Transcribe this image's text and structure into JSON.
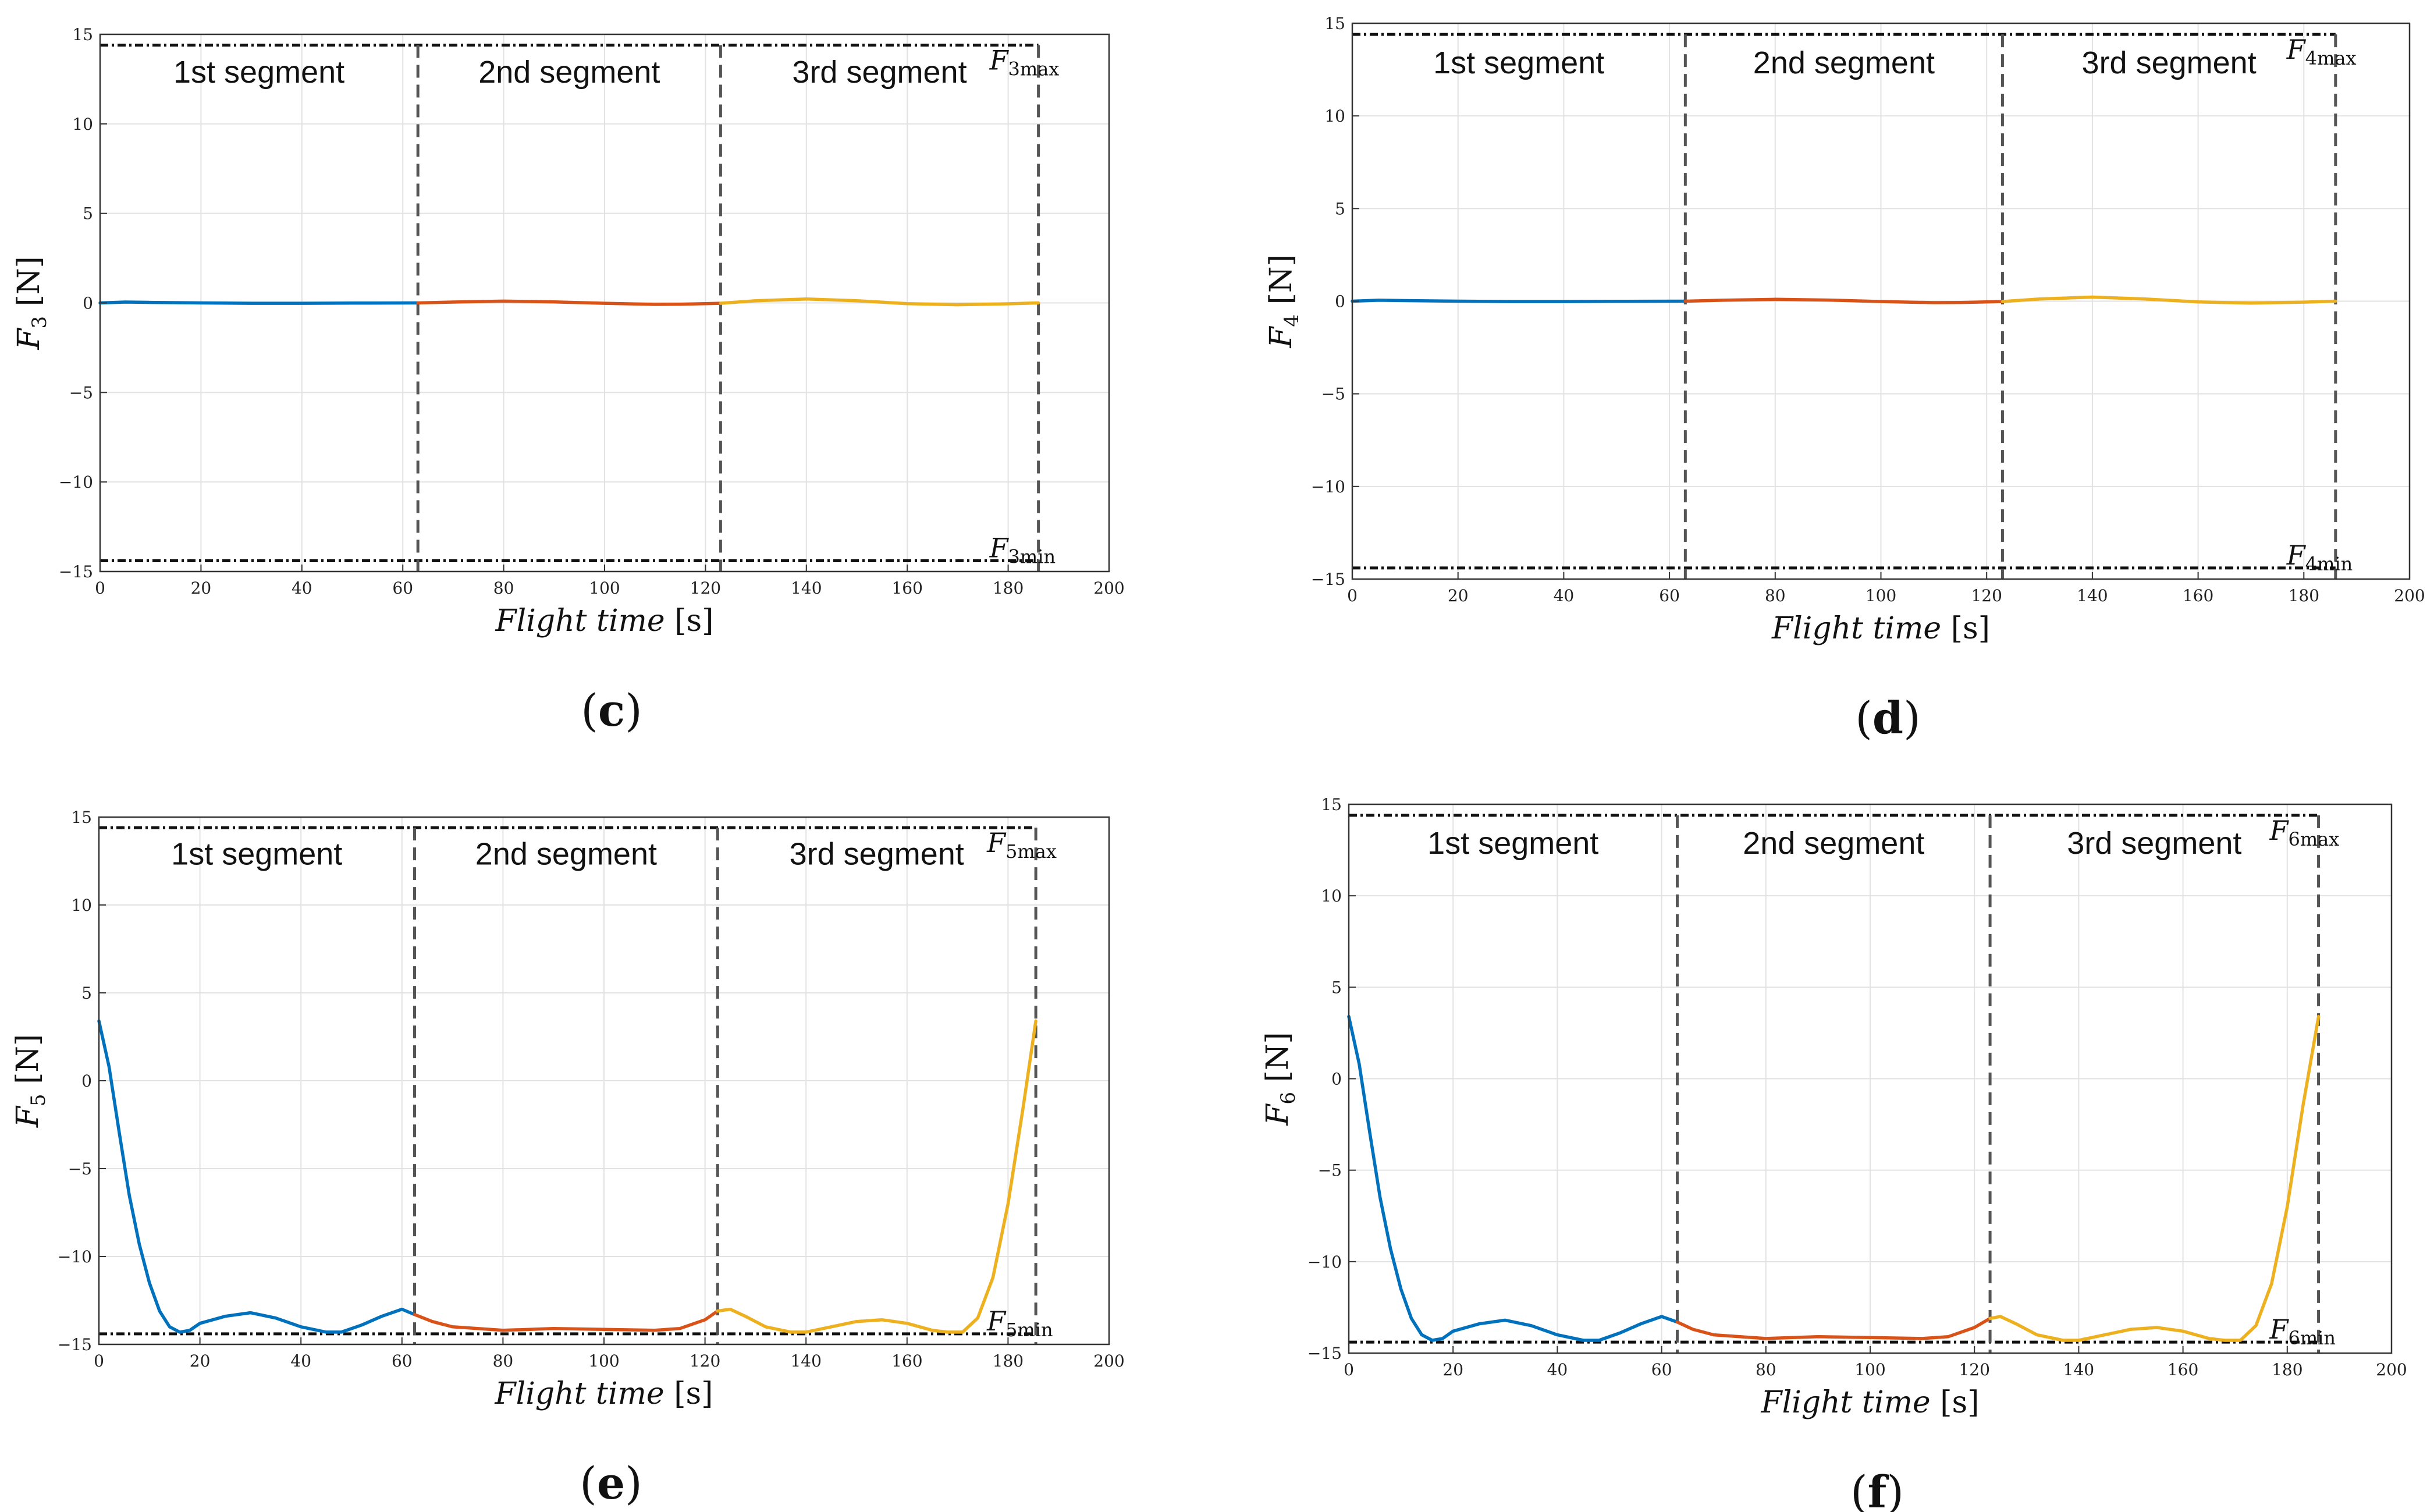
{
  "figure": {
    "title": ""
  },
  "chart_data": [
    {
      "type": "line",
      "panel": "c",
      "panel_letter": "c",
      "panel_label_text": "(c)",
      "force": "F",
      "force_index": "3",
      "ylabel_unit": "[N]",
      "xlabel_italic": "Flight time",
      "xlabel_unit": "[s]",
      "xlim": [
        0,
        200
      ],
      "ylim": [
        -15,
        15
      ],
      "xticks": [
        0,
        20,
        40,
        60,
        80,
        100,
        120,
        140,
        160,
        180,
        200
      ],
      "yticks": [
        -15,
        -10,
        -5,
        0,
        5,
        10,
        15
      ],
      "ytick_labels": [
        "−15",
        "−10",
        "−5",
        "0",
        "5",
        "10",
        "15"
      ],
      "grid": true,
      "max_label": "F3max",
      "max_label_base": "F",
      "max_label_sub": "3max",
      "min_label": "F3min",
      "min_label_base": "F",
      "min_label_sub": "3min",
      "segment_labels": [
        "1st segment",
        "2nd segment",
        "3rd segment"
      ],
      "segment_boundaries": [
        63,
        123,
        186
      ],
      "bounds": {
        "max": 14.4,
        "min": -14.4
      },
      "series": [
        {
          "name": "1st segment",
          "color": "#0072BD",
          "x": [
            0,
            5,
            10,
            20,
            30,
            40,
            50,
            63
          ],
          "y": [
            0.0,
            0.05,
            0.03,
            0.0,
            -0.02,
            -0.02,
            -0.01,
            0.0
          ]
        },
        {
          "name": "2nd segment",
          "color": "#D95319",
          "x": [
            63,
            70,
            80,
            90,
            100,
            110,
            115,
            123
          ],
          "y": [
            0.0,
            0.05,
            0.1,
            0.06,
            -0.02,
            -0.08,
            -0.07,
            -0.02
          ]
        },
        {
          "name": "3rd segment",
          "color": "#EDB120",
          "x": [
            123,
            130,
            140,
            150,
            160,
            170,
            180,
            186
          ],
          "y": [
            -0.02,
            0.12,
            0.22,
            0.12,
            -0.04,
            -0.1,
            -0.05,
            0.0
          ]
        }
      ]
    },
    {
      "type": "line",
      "panel": "d",
      "panel_letter": "d",
      "panel_label_text": "(d)",
      "force": "F",
      "force_index": "4",
      "ylabel_unit": "[N]",
      "xlabel_italic": "Flight time",
      "xlabel_unit": "[s]",
      "xlim": [
        0,
        200
      ],
      "ylim": [
        -15,
        15
      ],
      "xticks": [
        0,
        20,
        40,
        60,
        80,
        100,
        120,
        140,
        160,
        180,
        200
      ],
      "yticks": [
        -15,
        -10,
        -5,
        0,
        5,
        10,
        15
      ],
      "ytick_labels": [
        "−15",
        "−10",
        "−5",
        "0",
        "5",
        "10",
        "15"
      ],
      "grid": true,
      "max_label": "F4max",
      "max_label_base": "F",
      "max_label_sub": "4max",
      "min_label": "F4min",
      "min_label_base": "F",
      "min_label_sub": "4min",
      "segment_labels": [
        "1st segment",
        "2nd segment",
        "3rd segment"
      ],
      "segment_boundaries": [
        63,
        123,
        186
      ],
      "bounds": {
        "max": 14.4,
        "min": -14.4
      },
      "series": [
        {
          "name": "1st segment",
          "color": "#0072BD",
          "x": [
            0,
            5,
            10,
            20,
            30,
            40,
            50,
            63
          ],
          "y": [
            0.0,
            0.05,
            0.03,
            0.0,
            -0.02,
            -0.02,
            -0.01,
            0.0
          ]
        },
        {
          "name": "2nd segment",
          "color": "#D95319",
          "x": [
            63,
            70,
            80,
            90,
            100,
            110,
            115,
            123
          ],
          "y": [
            0.0,
            0.05,
            0.1,
            0.06,
            -0.02,
            -0.08,
            -0.07,
            -0.02
          ]
        },
        {
          "name": "3rd segment",
          "color": "#EDB120",
          "x": [
            123,
            130,
            140,
            150,
            160,
            170,
            180,
            186
          ],
          "y": [
            -0.02,
            0.12,
            0.22,
            0.12,
            -0.04,
            -0.1,
            -0.05,
            0.0
          ]
        }
      ]
    },
    {
      "type": "line",
      "panel": "e",
      "panel_letter": "e",
      "panel_label_text": "(e)",
      "force": "F",
      "force_index": "5",
      "ylabel_unit": "[N]",
      "xlabel_italic": "Flight time",
      "xlabel_unit": "[s]",
      "xlim": [
        0,
        200
      ],
      "ylim": [
        -15,
        15
      ],
      "xticks": [
        0,
        20,
        40,
        60,
        80,
        100,
        120,
        140,
        160,
        180,
        200
      ],
      "yticks": [
        -15,
        -10,
        -5,
        0,
        5,
        10,
        15
      ],
      "ytick_labels": [
        "−15",
        "−10",
        "−5",
        "0",
        "5",
        "10",
        "15"
      ],
      "grid": true,
      "max_label": "F5max",
      "max_label_base": "F",
      "max_label_sub": "5max",
      "min_label": "F5min",
      "min_label_base": "F",
      "min_label_sub": "5min",
      "segment_labels": [
        "1st segment",
        "2nd segment",
        "3rd segment"
      ],
      "segment_boundaries": [
        62.5,
        122.5,
        185.5
      ],
      "bounds": {
        "max": 14.4,
        "min": -14.4
      },
      "series": [
        {
          "name": "1st segment",
          "color": "#0072BD",
          "x": [
            0,
            2,
            4,
            6,
            8,
            10,
            12,
            14,
            16,
            18,
            20,
            25,
            30,
            35,
            40,
            45,
            48,
            52,
            56,
            60,
            62.5
          ],
          "y": [
            3.4,
            0.8,
            -2.9,
            -6.5,
            -9.3,
            -11.5,
            -13.1,
            -14.0,
            -14.3,
            -14.2,
            -13.8,
            -13.4,
            -13.2,
            -13.5,
            -14.0,
            -14.3,
            -14.3,
            -13.9,
            -13.4,
            -13.0,
            -13.3
          ]
        },
        {
          "name": "2nd segment",
          "color": "#D95319",
          "x": [
            62.5,
            66,
            70,
            75,
            80,
            90,
            100,
            110,
            115,
            120,
            122.5
          ],
          "y": [
            -13.3,
            -13.7,
            -14.0,
            -14.1,
            -14.2,
            -14.1,
            -14.15,
            -14.2,
            -14.1,
            -13.6,
            -13.1
          ]
        },
        {
          "name": "3rd segment",
          "color": "#EDB120",
          "x": [
            122.5,
            125,
            128,
            132,
            137,
            140,
            145,
            150,
            155,
            160,
            165,
            168,
            171,
            174,
            177,
            180,
            183,
            185.5
          ],
          "y": [
            -13.1,
            -13.0,
            -13.4,
            -14.0,
            -14.3,
            -14.3,
            -14.0,
            -13.7,
            -13.6,
            -13.8,
            -14.2,
            -14.3,
            -14.3,
            -13.5,
            -11.2,
            -7.0,
            -1.5,
            3.4
          ]
        }
      ]
    },
    {
      "type": "line",
      "panel": "f",
      "panel_letter": "f",
      "panel_label_text": "(f)",
      "force": "F",
      "force_index": "6",
      "ylabel_unit": "[N]",
      "xlabel_italic": "Flight time",
      "xlabel_unit": "[s]",
      "xlim": [
        0,
        200
      ],
      "ylim": [
        -15,
        15
      ],
      "xticks": [
        0,
        20,
        40,
        60,
        80,
        100,
        120,
        140,
        160,
        180,
        200
      ],
      "yticks": [
        -15,
        -10,
        -5,
        0,
        5,
        10,
        15
      ],
      "ytick_labels": [
        "−15",
        "−10",
        "−5",
        "0",
        "5",
        "10",
        "15"
      ],
      "grid": true,
      "max_label": "F6max",
      "max_label_base": "F",
      "max_label_sub": "6max",
      "min_label": "F6min",
      "min_label_base": "F",
      "min_label_sub": "6min",
      "segment_labels": [
        "1st segment",
        "2nd segment",
        "3rd segment"
      ],
      "segment_boundaries": [
        63,
        123,
        186
      ],
      "bounds": {
        "max": 14.4,
        "min": -14.4
      },
      "series": [
        {
          "name": "1st segment",
          "color": "#0072BD",
          "x": [
            0,
            2,
            4,
            6,
            8,
            10,
            12,
            14,
            16,
            18,
            20,
            25,
            30,
            35,
            40,
            45,
            48,
            52,
            56,
            60,
            63
          ],
          "y": [
            3.4,
            0.8,
            -2.9,
            -6.5,
            -9.3,
            -11.5,
            -13.1,
            -14.0,
            -14.3,
            -14.2,
            -13.8,
            -13.4,
            -13.2,
            -13.5,
            -14.0,
            -14.3,
            -14.3,
            -13.9,
            -13.4,
            -13.0,
            -13.3
          ]
        },
        {
          "name": "2nd segment",
          "color": "#D95319",
          "x": [
            63,
            66,
            70,
            75,
            80,
            90,
            100,
            110,
            115,
            120,
            123
          ],
          "y": [
            -13.3,
            -13.7,
            -14.0,
            -14.1,
            -14.2,
            -14.1,
            -14.15,
            -14.2,
            -14.1,
            -13.6,
            -13.1
          ]
        },
        {
          "name": "3rd segment",
          "color": "#EDB120",
          "x": [
            123,
            125,
            128,
            132,
            137,
            140,
            145,
            150,
            155,
            160,
            165,
            168,
            171,
            174,
            177,
            180,
            183,
            186
          ],
          "y": [
            -13.1,
            -13.0,
            -13.4,
            -14.0,
            -14.3,
            -14.3,
            -14.0,
            -13.7,
            -13.6,
            -13.8,
            -14.2,
            -14.3,
            -14.3,
            -13.5,
            -11.2,
            -7.0,
            -1.5,
            3.4
          ]
        }
      ]
    }
  ]
}
